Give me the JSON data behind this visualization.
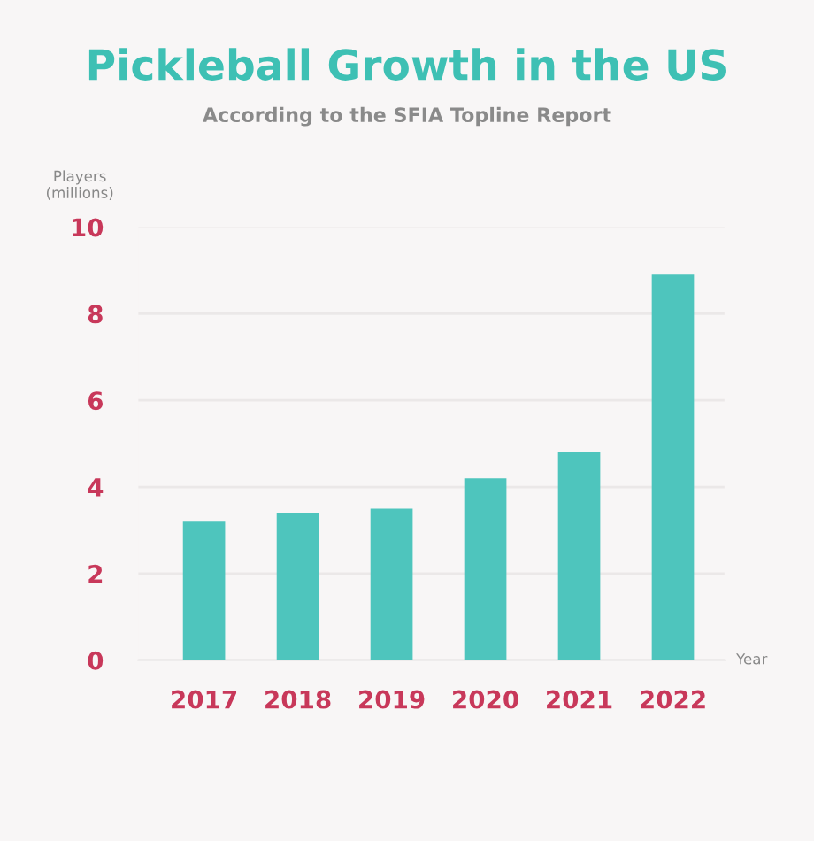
{
  "chart_data": {
    "type": "bar",
    "title": "Pickleball Growth in the US",
    "subtitle": "According to the SFIA Topline Report",
    "ylabel": "Players\n(millions)",
    "xlabel": "Year",
    "categories": [
      "2017",
      "2018",
      "2019",
      "2020",
      "2021",
      "2022"
    ],
    "values": [
      3.2,
      3.4,
      3.5,
      4.2,
      4.8,
      8.9
    ],
    "color": "#4ec5bd",
    "ylim": [
      0,
      10
    ],
    "yticks": [
      0,
      2,
      4,
      6,
      8,
      10
    ],
    "grid": "y"
  }
}
